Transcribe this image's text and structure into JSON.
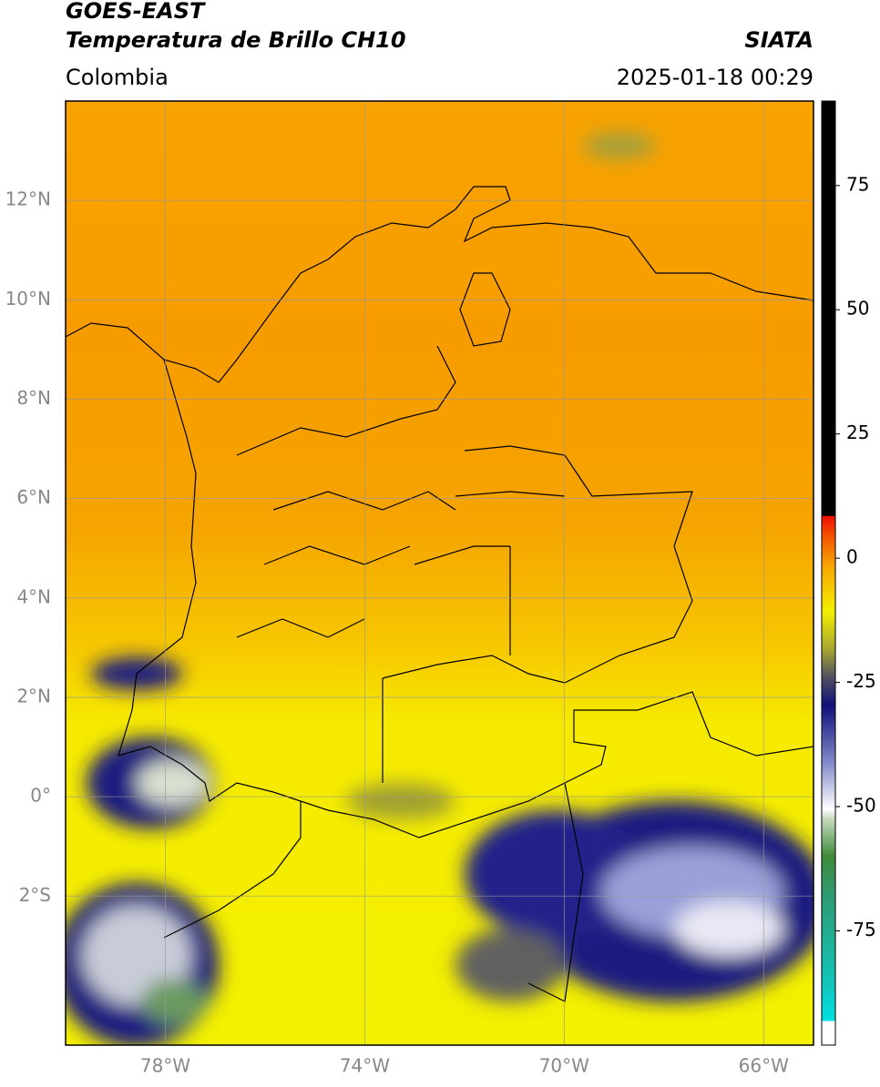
{
  "header": {
    "title": "GOES-EAST",
    "subtitle": "Temperatura de Brillo CH10",
    "source": "SIATA",
    "region": "Colombia",
    "timestamp": "2025-01-18 00:29"
  },
  "map": {
    "xlim": [
      -80,
      -65
    ],
    "ylim": [
      -5,
      14
    ],
    "xticks": [
      {
        "value": -78,
        "label": "78°W"
      },
      {
        "value": -74,
        "label": "74°W"
      },
      {
        "value": -70,
        "label": "70°W"
      },
      {
        "value": -66,
        "label": "66°W"
      }
    ],
    "yticks": [
      {
        "value": 12,
        "label": "12°N"
      },
      {
        "value": 10,
        "label": "10°N"
      },
      {
        "value": 8,
        "label": "8°N"
      },
      {
        "value": 6,
        "label": "6°N"
      },
      {
        "value": 4,
        "label": "4°N"
      },
      {
        "value": 2,
        "label": "2°N"
      },
      {
        "value": 0,
        "label": "0°"
      },
      {
        "value": -2,
        "label": "2°S"
      }
    ],
    "grid": true
  },
  "colorbar": {
    "lim": [
      -98,
      92
    ],
    "ticks": [
      75,
      50,
      25,
      0,
      -25,
      -50,
      -75
    ]
  }
}
